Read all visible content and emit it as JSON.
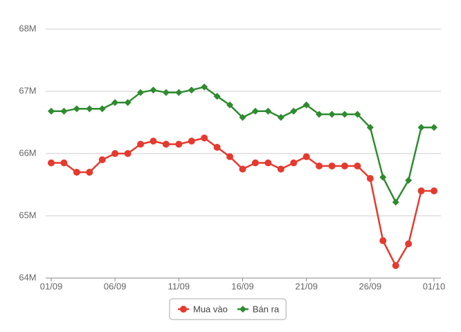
{
  "chart_data": {
    "type": "line",
    "categories": [
      "01/09",
      null,
      null,
      null,
      null,
      "06/09",
      null,
      null,
      null,
      null,
      "11/09",
      null,
      null,
      null,
      null,
      "16/09",
      null,
      null,
      null,
      null,
      "21/09",
      null,
      null,
      null,
      null,
      "26/09",
      null,
      null,
      null,
      null,
      "01/10"
    ],
    "series": [
      {
        "name": "Mua vào",
        "color": "#e53a2f",
        "marker": "circle",
        "values": [
          65.85,
          65.85,
          65.7,
          65.7,
          65.9,
          66.0,
          66.0,
          66.15,
          66.2,
          66.15,
          66.15,
          66.2,
          66.25,
          66.1,
          65.95,
          65.75,
          65.85,
          65.85,
          65.75,
          65.85,
          65.95,
          65.8,
          65.8,
          65.8,
          65.8,
          65.6,
          64.6,
          64.2,
          64.55,
          65.4,
          65.4
        ]
      },
      {
        "name": "Bán ra",
        "color": "#2e8b2e",
        "marker": "diamond",
        "values": [
          66.68,
          66.68,
          66.72,
          66.72,
          66.72,
          66.82,
          66.82,
          66.98,
          67.02,
          66.98,
          66.98,
          67.02,
          67.07,
          66.92,
          66.78,
          66.58,
          66.68,
          66.68,
          66.58,
          66.68,
          66.78,
          66.63,
          66.63,
          66.63,
          66.63,
          66.42,
          65.62,
          65.22,
          65.57,
          66.42,
          66.42
        ]
      }
    ],
    "ylim": [
      64,
      68
    ],
    "yticks": [
      {
        "value": 64,
        "label": "64M"
      },
      {
        "value": 65,
        "label": "65M"
      },
      {
        "value": 66,
        "label": "66M"
      },
      {
        "value": 67,
        "label": "67M"
      },
      {
        "value": 68,
        "label": "68M"
      }
    ],
    "grid": true,
    "legend": "bottom"
  }
}
